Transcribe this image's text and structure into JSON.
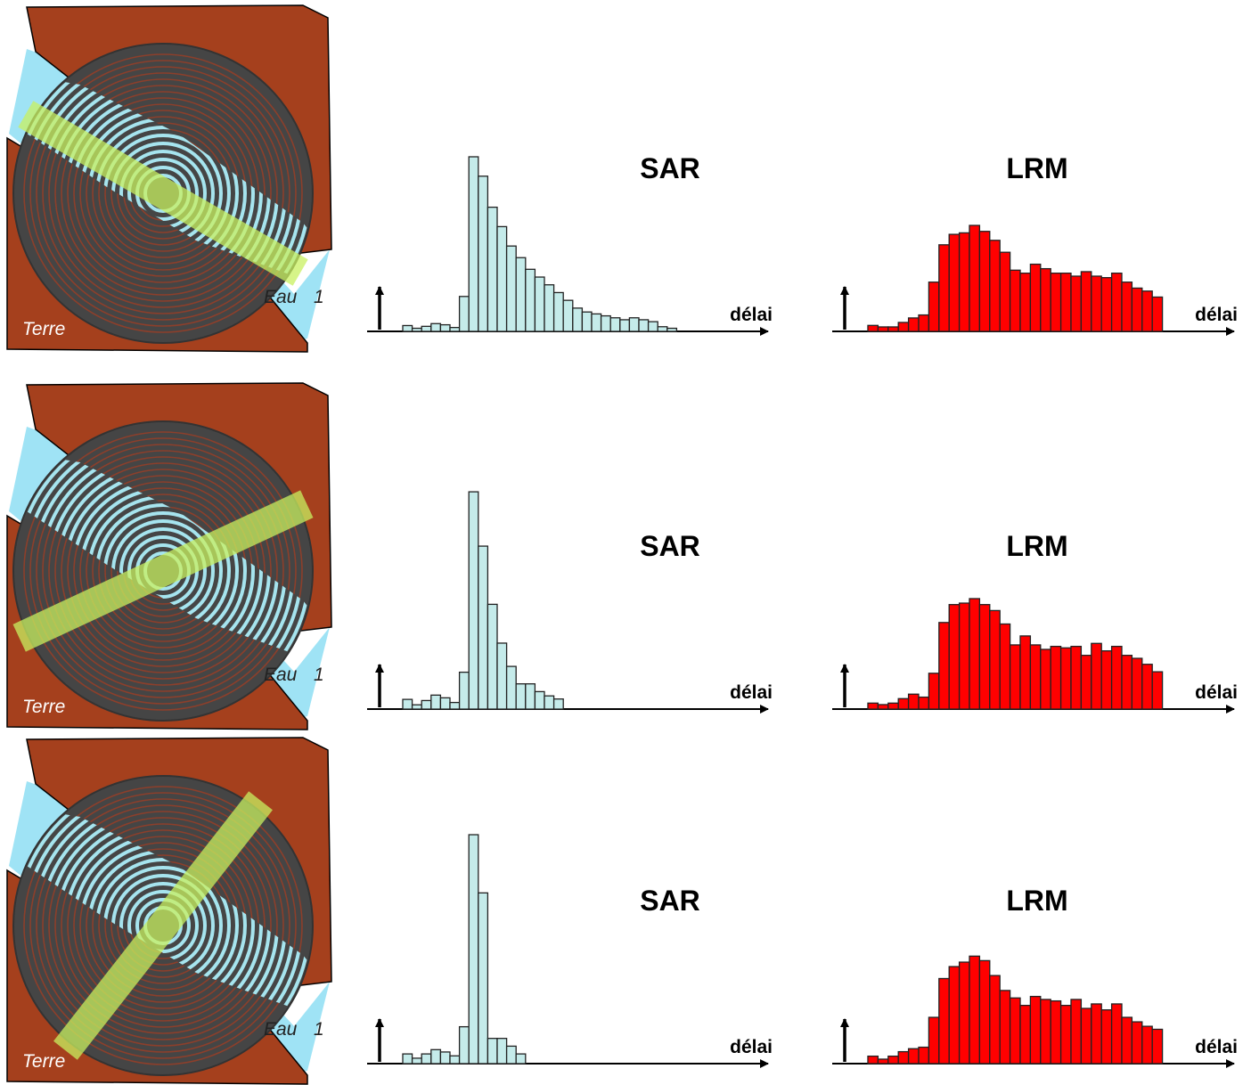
{
  "colors": {
    "land": "#a5401d",
    "water": "#9fe3f5",
    "ring_dark": "#454545",
    "ring_light": "#a6e4ee",
    "beam": "#c8f060",
    "sar_bar": "#c5ebea",
    "lrm_bar": "#ff0000"
  },
  "panels": [
    {
      "map": {
        "land_label": "Terre",
        "water_label": "Eau",
        "marker": "1",
        "beam_angle_deg": 30
      },
      "sar": {
        "title": "SAR",
        "axis_label": "délai",
        "type": "bar",
        "values": [
          1.5,
          0.8,
          1.3,
          2.0,
          1.7,
          1.0,
          9.0,
          45,
          40,
          32,
          27,
          22,
          19,
          16,
          14,
          12,
          10,
          8,
          6,
          5,
          4.5,
          4,
          3.5,
          3,
          3.5,
          3,
          2.5,
          1.2,
          0.8
        ]
      },
      "lrm": {
        "title": "LRM",
        "axis_label": "délai",
        "type": "bar",
        "values": [
          4,
          3,
          3,
          6,
          9,
          11,
          33,
          58,
          65,
          66,
          71,
          67,
          61,
          53,
          41,
          39,
          45,
          42,
          39,
          39,
          37,
          40,
          37,
          36,
          39,
          33,
          29,
          27,
          23
        ]
      }
    },
    {
      "map": {
        "land_label": "Terre",
        "water_label": "Eau",
        "marker": "1",
        "beam_angle_deg": -25
      },
      "sar": {
        "title": "SAR",
        "axis_label": "délai",
        "type": "bar",
        "values": [
          2.5,
          1.1,
          2.2,
          3.6,
          2.9,
          1.7,
          9.5,
          56,
          42,
          27,
          17,
          11,
          6.5,
          6.5,
          4.5,
          3.4,
          2.6
        ]
      },
      "lrm": {
        "title": "LRM",
        "axis_label": "délai",
        "type": "bar",
        "values": [
          4,
          3,
          4,
          7,
          10,
          8,
          24,
          58,
          70,
          71,
          74,
          70,
          66,
          57,
          43,
          49,
          43,
          40,
          42,
          41,
          42,
          36,
          44,
          39,
          42,
          36,
          34,
          30,
          25
        ]
      }
    },
    {
      "map": {
        "land_label": "Terre",
        "water_label": "Eau",
        "marker": "1",
        "beam_angle_deg": -52
      },
      "sar": {
        "title": "SAR",
        "axis_label": "délai",
        "type": "bar",
        "values": [
          2.5,
          1.4,
          2.5,
          3.6,
          3.0,
          2.0,
          9.5,
          59,
          44,
          6.5,
          6.5,
          4.5,
          2.5
        ]
      },
      "lrm": {
        "title": "LRM",
        "axis_label": "délai",
        "type": "bar",
        "values": [
          5,
          3,
          5,
          8,
          10,
          11,
          31,
          57,
          65,
          68,
          72,
          69,
          59,
          49,
          44,
          39,
          45,
          43,
          42,
          39,
          43,
          37,
          40,
          36,
          40,
          31,
          28,
          25,
          23
        ]
      }
    }
  ]
}
